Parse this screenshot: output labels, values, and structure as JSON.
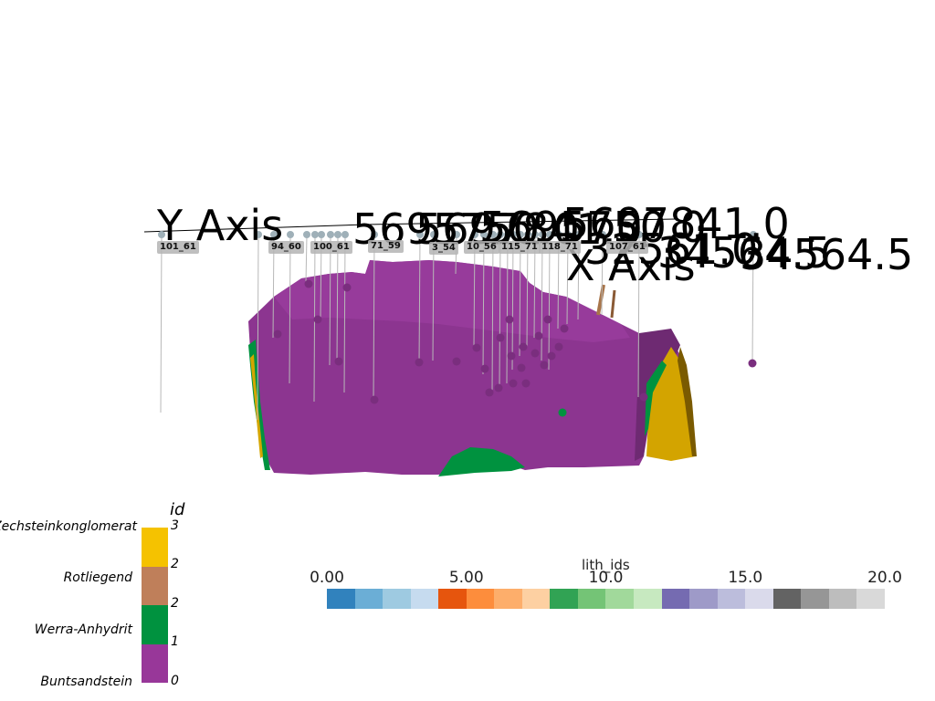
{
  "axes": {
    "y_title": "Y Axis",
    "x_title": "X Axis",
    "y_ticks": [
      "5695750.0",
      "5697841.0"
    ],
    "x_ticks": [
      "32561.0",
      "34564.5"
    ]
  },
  "wells": [
    {
      "label": "101_61"
    },
    {
      "label": "94_60"
    },
    {
      "label": "100_61"
    },
    {
      "label": "71_59"
    },
    {
      "label": "3_54"
    },
    {
      "label": "10_56"
    },
    {
      "label": "115_71"
    },
    {
      "label": "118_71"
    },
    {
      "label": "107_61"
    }
  ],
  "formation_legend": {
    "title": "id",
    "entries": [
      {
        "name": "Zechsteinkonglomerat",
        "color": "#f5c200",
        "tick": "3"
      },
      {
        "name": "Rotliegend",
        "color": "#bf7f5a",
        "tick": "2"
      },
      {
        "name": "Werra-Anhydrit",
        "color": "#00923f",
        "tick": "2"
      },
      {
        "name": "Buntsandstein",
        "color": "#983799",
        "tick": "1"
      }
    ],
    "bottom_tick": "0"
  },
  "colorbar": {
    "title": "lith_ids",
    "ticks": [
      "0.00",
      "5.00",
      "10.0",
      "15.0",
      "20.0"
    ],
    "colors": [
      "#3182bd",
      "#6baed6",
      "#9ecae1",
      "#c6dbef",
      "#e6550d",
      "#fd8d3c",
      "#fdae6b",
      "#fdd0a2",
      "#31a354",
      "#74c476",
      "#a1d99b",
      "#c7e9c0",
      "#756bb1",
      "#9e9ac8",
      "#bcbddc",
      "#dadaeb",
      "#636363",
      "#969696",
      "#bdbdbd",
      "#d9d9d9"
    ]
  },
  "colors": {
    "buntsandstein": "#983799",
    "werra_anhydrit": "#00923f",
    "zechstein": "#d4a600",
    "rotliegend": "#a8754a",
    "well_ball": "#9fb0b8",
    "well_line": "#b8b8b8"
  }
}
